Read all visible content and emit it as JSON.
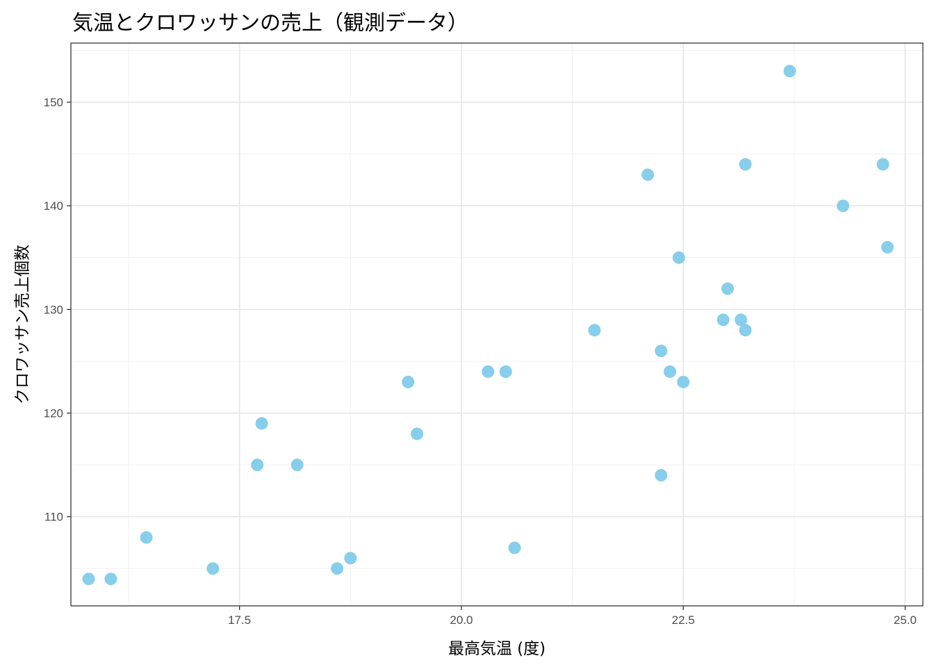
{
  "chart_data": {
    "type": "scatter",
    "title": "気温とクロワッサンの売上（観測データ）",
    "xlabel": "最高気温 (度)",
    "ylabel": "クロワッサン売上個数",
    "xlim": [
      15.6,
      25.2
    ],
    "ylim": [
      101.4,
      155.7
    ],
    "x_ticks": [
      "17.5",
      "20.0",
      "22.5",
      "25.0"
    ],
    "y_ticks": [
      "110",
      "120",
      "130",
      "140",
      "150"
    ],
    "grid": true,
    "point_color": "#87CEEB",
    "points": [
      {
        "x": 15.8,
        "y": 104
      },
      {
        "x": 16.05,
        "y": 104
      },
      {
        "x": 16.45,
        "y": 108
      },
      {
        "x": 17.2,
        "y": 105
      },
      {
        "x": 17.7,
        "y": 115
      },
      {
        "x": 17.75,
        "y": 119
      },
      {
        "x": 18.15,
        "y": 115
      },
      {
        "x": 18.6,
        "y": 105
      },
      {
        "x": 18.75,
        "y": 106
      },
      {
        "x": 19.4,
        "y": 123
      },
      {
        "x": 19.5,
        "y": 118
      },
      {
        "x": 20.3,
        "y": 124
      },
      {
        "x": 20.5,
        "y": 124
      },
      {
        "x": 20.6,
        "y": 107
      },
      {
        "x": 21.5,
        "y": 128
      },
      {
        "x": 22.1,
        "y": 143
      },
      {
        "x": 22.25,
        "y": 126
      },
      {
        "x": 22.25,
        "y": 114
      },
      {
        "x": 22.35,
        "y": 124
      },
      {
        "x": 22.45,
        "y": 135
      },
      {
        "x": 22.5,
        "y": 123
      },
      {
        "x": 22.95,
        "y": 129
      },
      {
        "x": 23.0,
        "y": 132
      },
      {
        "x": 23.15,
        "y": 129
      },
      {
        "x": 23.2,
        "y": 144
      },
      {
        "x": 23.2,
        "y": 128
      },
      {
        "x": 23.7,
        "y": 153
      },
      {
        "x": 24.3,
        "y": 140
      },
      {
        "x": 24.75,
        "y": 144
      },
      {
        "x": 24.8,
        "y": 136
      }
    ]
  }
}
